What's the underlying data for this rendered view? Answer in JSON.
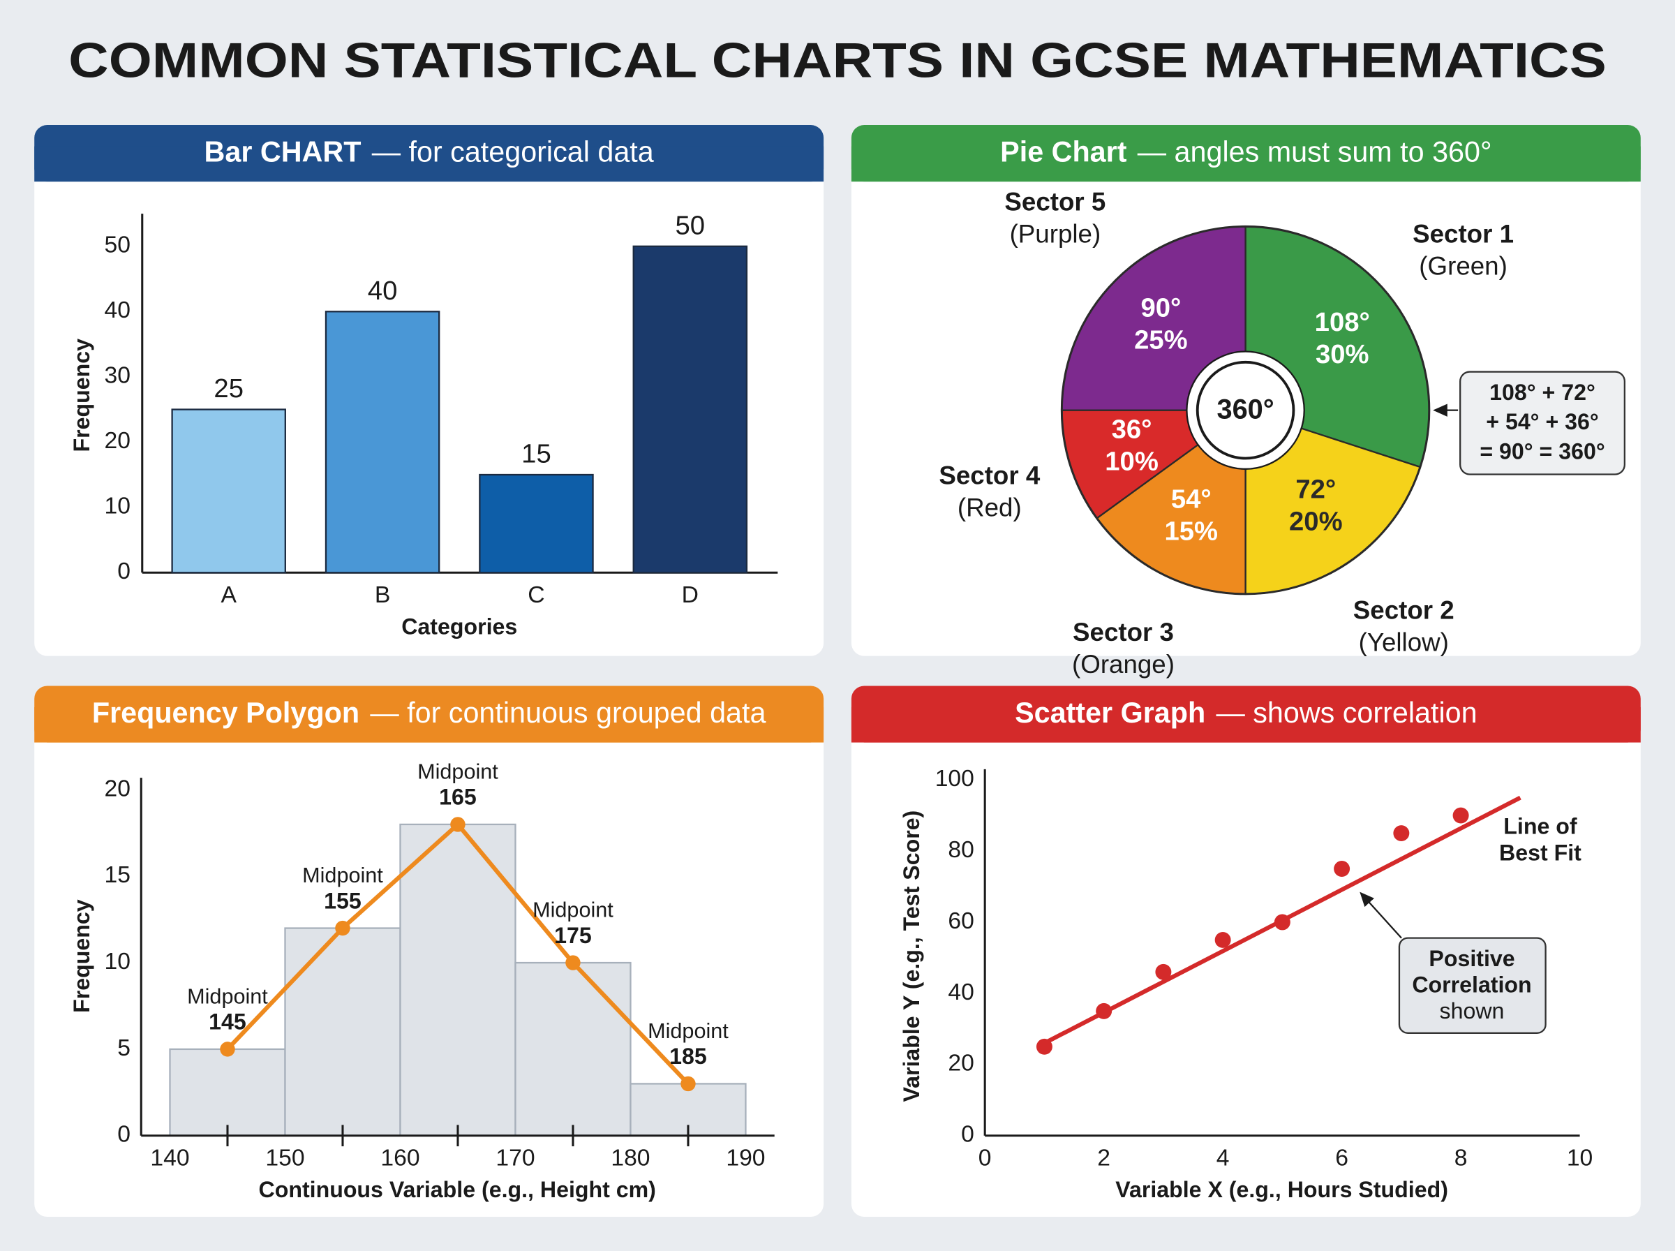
{
  "title": "COMMON STATISTICAL CHARTS IN GCSE MATHEMATICS",
  "chart_data": [
    {
      "type": "bar",
      "title": "Bar CHART",
      "subtitle": "— for categorical data",
      "header_color": "#1f4e8a",
      "categories": [
        "A",
        "B",
        "C",
        "D"
      ],
      "values": [
        25,
        40,
        15,
        50
      ],
      "colors": [
        "#90c8ec",
        "#4a97d6",
        "#0e5ea8",
        "#1b3a6b"
      ],
      "xlabel": "Categories",
      "ylabel": "Frequency",
      "ylim": [
        0,
        55
      ],
      "yticks": [
        0,
        10,
        20,
        30,
        40,
        50
      ]
    },
    {
      "type": "pie",
      "title": "Pie Chart",
      "subtitle": "— angles must sum to 360°",
      "header_color": "#3a9c48",
      "categories": [
        "Sector 1",
        "Sector 2",
        "Sector 3",
        "Sector 4",
        "Sector 5"
      ],
      "sublabels": [
        "(Green)",
        "(Yellow)",
        "(Orange)",
        "(Red)",
        "(Purple)"
      ],
      "values": [
        108,
        72,
        54,
        36,
        90
      ],
      "value_labels": [
        "108°",
        "72°",
        "54°",
        "36°",
        "90°"
      ],
      "percent_labels": [
        "30%",
        "20%",
        "15%",
        "10%",
        "25%"
      ],
      "colors": [
        "#3a9a48",
        "#f5d21a",
        "#ee8a1e",
        "#d92a2a",
        "#7d2a8e"
      ],
      "label_colors": [
        "#ffffff",
        "#2a2a2a",
        "#ffffff",
        "#ffffff",
        "#ffffff"
      ],
      "center_label": "360°",
      "annotation": [
        "108° + 72°",
        "+ 54° + 36°",
        "= 90° = 360°"
      ]
    },
    {
      "type": "histogram",
      "title": "Frequency Polygon",
      "subtitle": "— for continuous grouped data",
      "header_color": "#ec8a22",
      "bins": [
        140,
        150,
        160,
        170,
        180,
        190
      ],
      "values": [
        5,
        12,
        18,
        10,
        3
      ],
      "midpoints": [
        145,
        155,
        165,
        175,
        185
      ],
      "point_label": "Midpoint",
      "bar_color": "#dfe3e8",
      "line_color": "#ee8a1e",
      "xlabel": "Continuous Variable (e.g., Height cm)",
      "ylabel": "Frequency",
      "xlim": [
        137.5,
        192.5
      ],
      "xticks": [
        140,
        150,
        160,
        170,
        180,
        190
      ],
      "ylim": [
        0,
        20.7
      ],
      "yticks": [
        0,
        5,
        10,
        15,
        20
      ]
    },
    {
      "type": "scatter",
      "title": "Scatter Graph",
      "subtitle": "— shows correlation",
      "header_color": "#d42a2a",
      "x": [
        1,
        2,
        3,
        4,
        5,
        6,
        7,
        8
      ],
      "values": [
        25,
        35,
        46,
        55,
        60,
        75,
        85,
        90
      ],
      "color": "#d42a2a",
      "trendline": {
        "x": [
          1,
          9
        ],
        "values": [
          26,
          95
        ]
      },
      "trendline_label": [
        "Line of",
        "Best Fit"
      ],
      "annotation": [
        "Positive",
        "Correlation",
        "shown"
      ],
      "xlabel": "Variable X (e.g., Hours Studied)",
      "ylabel": "Variable Y (e.g., Test Score)",
      "xlim": [
        0,
        10
      ],
      "xticks": [
        0,
        2,
        4,
        6,
        8,
        10
      ],
      "ylim": [
        0,
        103
      ],
      "yticks": [
        0,
        20,
        40,
        60,
        80,
        100
      ]
    }
  ]
}
